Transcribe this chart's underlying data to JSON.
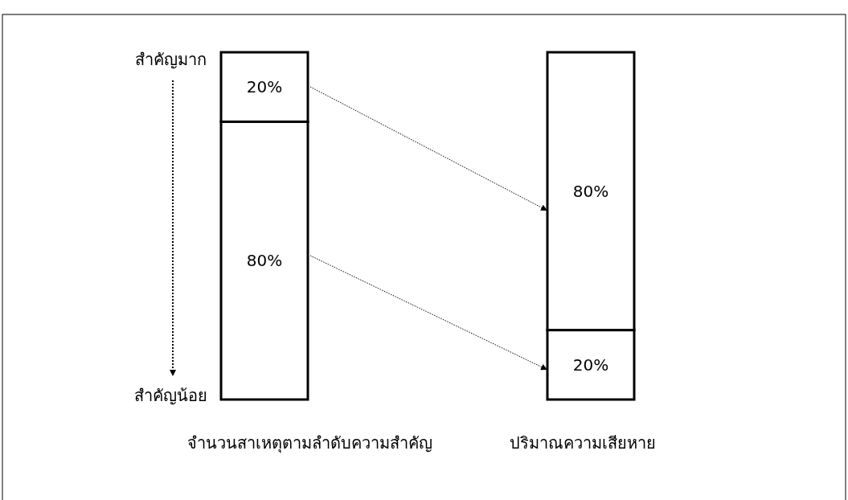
{
  "chart_data": {
    "type": "bar",
    "stacked": true,
    "categories": [
      "จำนวนสาเหตุตามลำดับความสำคัญ",
      "ปริมาณความเสียหาย"
    ],
    "series": [
      {
        "color": "#ffffff",
        "values": [
          80,
          20
        ],
        "value_labels": [
          "80%",
          "20%"
        ]
      },
      {
        "color": "#ffffff",
        "values": [
          20,
          80
        ],
        "value_labels": [
          "20%",
          "80%"
        ]
      }
    ],
    "annotations": [
      "สำคัญมาก",
      "สำคัญน้อย"
    ]
  }
}
